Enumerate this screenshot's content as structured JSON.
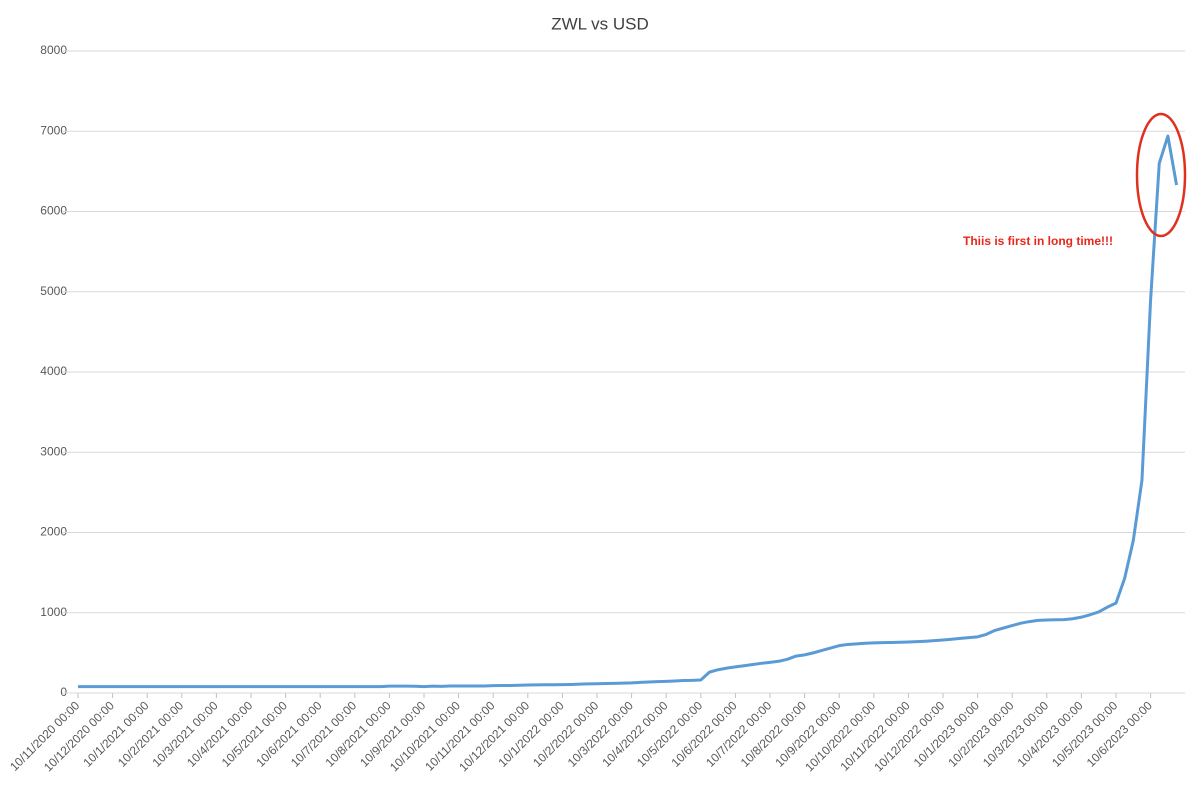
{
  "chart_data": {
    "type": "line",
    "title": "ZWL vs USD",
    "categories": [
      "10/11/2020 00:00",
      null,
      null,
      null,
      "10/12/2020 00:00",
      null,
      null,
      null,
      "10/1/2021 00:00",
      null,
      null,
      null,
      "10/2/2021 00:00",
      null,
      null,
      null,
      "10/3/2021 00:00",
      null,
      null,
      null,
      "10/4/2021 00:00",
      null,
      null,
      null,
      "10/5/2021 00:00",
      null,
      null,
      null,
      "10/6/2021 00:00",
      null,
      null,
      null,
      "10/7/2021 00:00",
      null,
      null,
      null,
      "10/8/2021 00:00",
      null,
      null,
      null,
      "10/9/2021 00:00",
      null,
      null,
      null,
      "10/10/2021 00:00",
      null,
      null,
      null,
      "10/11/2021 00:00",
      null,
      null,
      null,
      "10/12/2021 00:00",
      null,
      null,
      null,
      "10/1/2022 00:00",
      null,
      null,
      null,
      "10/2/2022 00:00",
      null,
      null,
      null,
      "10/3/2022 00:00",
      null,
      null,
      null,
      "10/4/2022 00:00",
      null,
      null,
      null,
      "10/5/2022 00:00",
      null,
      null,
      null,
      "10/6/2022 00:00",
      null,
      null,
      null,
      "10/7/2022 00:00",
      null,
      null,
      null,
      "10/8/2022 00:00",
      null,
      null,
      null,
      "10/9/2022 00:00",
      null,
      null,
      null,
      "10/10/2022 00:00",
      null,
      null,
      null,
      "10/11/2022 00:00",
      null,
      null,
      null,
      "10/12/2022 00:00",
      null,
      null,
      null,
      "10/1/2023 00:00",
      null,
      null,
      null,
      "10/2/2023 00:00",
      null,
      null,
      null,
      "10/3/2023 00:00",
      null,
      null,
      null,
      "10/4/2023 00:00",
      null,
      null,
      null,
      "10/5/2023 00:00",
      null,
      null,
      null,
      "10/6/2023 00:00",
      null,
      null,
      null
    ],
    "values": [
      80,
      80,
      80,
      80,
      80,
      80,
      80,
      80,
      80,
      80,
      80,
      80,
      80,
      80,
      80,
      80,
      80,
      80,
      80,
      80,
      80,
      80,
      80,
      80,
      80,
      80,
      80,
      80,
      80,
      80,
      80,
      80,
      80,
      80,
      80,
      80,
      85,
      85,
      85,
      84,
      80,
      85,
      82,
      87,
      87,
      87,
      87,
      88,
      92,
      93,
      94,
      97,
      100,
      101,
      102,
      103,
      104,
      106,
      110,
      113,
      116,
      118,
      120,
      123,
      126,
      132,
      137,
      141,
      145,
      150,
      155,
      158,
      162,
      260,
      290,
      310,
      325,
      340,
      355,
      370,
      382,
      395,
      420,
      460,
      475,
      500,
      530,
      560,
      590,
      605,
      612,
      620,
      625,
      628,
      630,
      632,
      635,
      640,
      645,
      652,
      660,
      670,
      680,
      690,
      700,
      730,
      780,
      810,
      840,
      870,
      890,
      905,
      910,
      912,
      915,
      925,
      945,
      975,
      1010,
      1070,
      1120,
      1430,
      1900,
      2650,
      4900,
      6600,
      6940,
      6330
    ],
    "color": "#5b9bd5",
    "ylim": [
      0,
      8000
    ],
    "yticks": [
      0,
      1000,
      2000,
      3000,
      4000,
      5000,
      6000,
      7000,
      8000
    ],
    "grid": true,
    "annotation": "Thiis is first in long time!!!"
  }
}
